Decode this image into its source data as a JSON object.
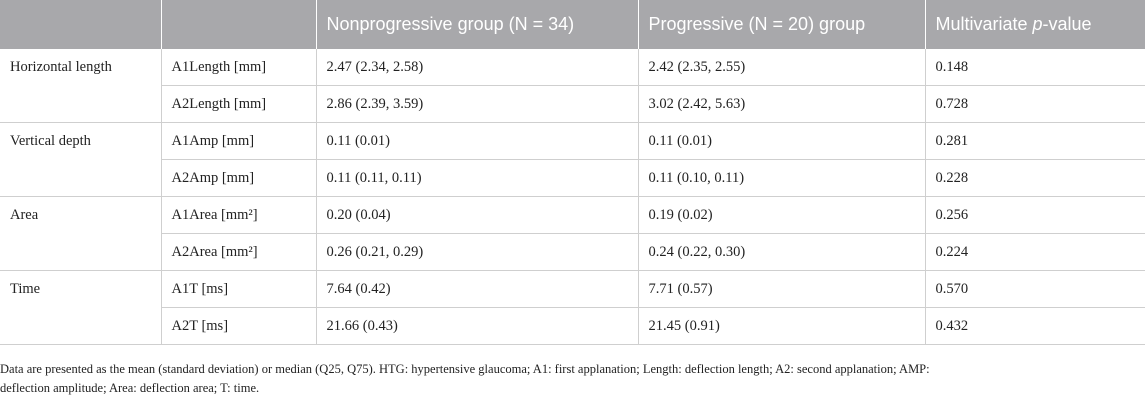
{
  "table": {
    "headers": [
      "",
      "",
      "Nonprogressive group (N = 34)",
      "Progressive (N = 20) group",
      "Multivariate ",
      "p",
      "-value"
    ],
    "groups": [
      {
        "name": "Horizontal length",
        "rows": [
          {
            "param": "A1Length [mm]",
            "nonprog": "2.47 (2.34, 2.58)",
            "prog": "2.42 (2.35, 2.55)",
            "p": "0.148"
          },
          {
            "param": "A2Length [mm]",
            "nonprog": "2.86 (2.39, 3.59)",
            "prog": "3.02 (2.42, 5.63)",
            "p": "0.728"
          }
        ]
      },
      {
        "name": "Vertical depth",
        "rows": [
          {
            "param": "A1Amp [mm]",
            "nonprog": "0.11 (0.01)",
            "prog": "0.11 (0.01)",
            "p": "0.281"
          },
          {
            "param": "A2Amp [mm]",
            "nonprog": "0.11 (0.11, 0.11)",
            "prog": "0.11 (0.10, 0.11)",
            "p": "0.228"
          }
        ]
      },
      {
        "name": "Area",
        "rows": [
          {
            "param": "A1Area [mm²]",
            "nonprog": "0.20 (0.04)",
            "prog": "0.19 (0.02)",
            "p": "0.256"
          },
          {
            "param": "A2Area [mm²]",
            "nonprog": "0.26 (0.21, 0.29)",
            "prog": "0.24 (0.22, 0.30)",
            "p": "0.224"
          }
        ]
      },
      {
        "name": "Time",
        "rows": [
          {
            "param": "A1T [ms]",
            "nonprog": "7.64 (0.42)",
            "prog": "7.71 (0.57)",
            "p": "0.570"
          },
          {
            "param": "A2T [ms]",
            "nonprog": "21.66 (0.43)",
            "prog": "21.45 (0.91)",
            "p": "0.432"
          }
        ]
      }
    ]
  },
  "footnote": {
    "line1": "Data are presented as the mean (standard deviation) or median (Q25, Q75). HTG: hypertensive glaucoma; A1: first applanation; Length: deflection length; A2: second applanation; AMP:",
    "line2": "deflection amplitude; Area: deflection area; T: time."
  },
  "colors": {
    "header_bg": "#a8a8ab",
    "header_text": "#ffffff",
    "grid": "#cfcfcf"
  }
}
